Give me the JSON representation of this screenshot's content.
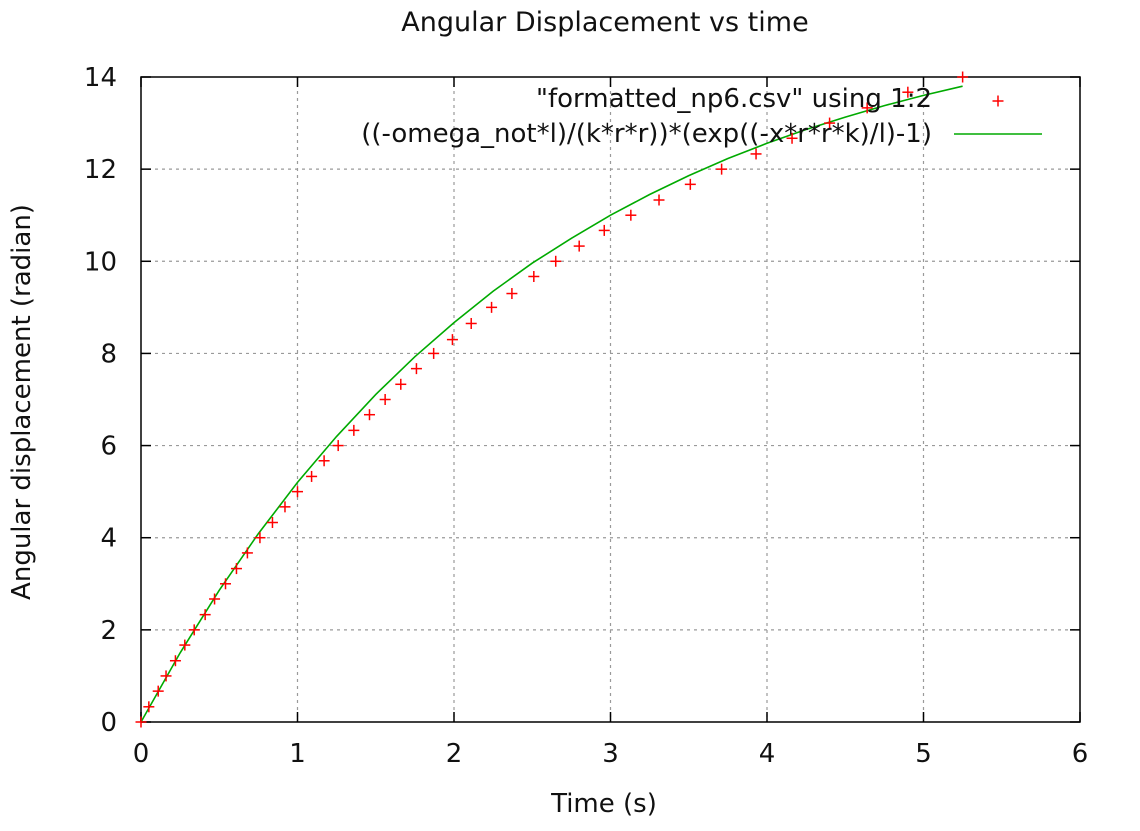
{
  "chart_data": {
    "type": "scatter",
    "title": "Angular Displacement vs time",
    "xlabel": "Time (s)",
    "ylabel": "Angular displacement (radian)",
    "xlim": [
      0,
      6
    ],
    "ylim": [
      0,
      14
    ],
    "xticks": [
      0,
      1,
      2,
      3,
      4,
      5,
      6
    ],
    "yticks": [
      0,
      2,
      4,
      6,
      8,
      10,
      12,
      14
    ],
    "xtick_labels": [
      "0",
      "1",
      "2",
      "3",
      "4",
      "5",
      "6"
    ],
    "ytick_labels": [
      "0",
      "2",
      "4",
      "6",
      "8",
      "10",
      "12",
      "14"
    ],
    "grid": true,
    "legend_position": "top-right",
    "series": [
      {
        "name": "\"formatted_np6.csv\" using 1:2",
        "kind": "points",
        "marker": "+",
        "color": "#ff0000",
        "x": [
          0.0,
          0.05,
          0.11,
          0.16,
          0.22,
          0.28,
          0.34,
          0.41,
          0.47,
          0.54,
          0.61,
          0.68,
          0.76,
          0.84,
          0.92,
          1.0,
          1.09,
          1.17,
          1.26,
          1.36,
          1.46,
          1.56,
          1.66,
          1.76,
          1.87,
          1.99,
          2.11,
          2.24,
          2.37,
          2.51,
          2.65,
          2.8,
          2.96,
          3.13,
          3.31,
          3.51,
          3.71,
          3.93,
          4.16,
          4.4,
          4.64,
          4.9,
          5.25
        ],
        "y": [
          0.0,
          0.33,
          0.67,
          1.0,
          1.33,
          1.67,
          2.0,
          2.33,
          2.67,
          3.0,
          3.33,
          3.67,
          4.0,
          4.33,
          4.67,
          5.0,
          5.33,
          5.67,
          6.0,
          6.33,
          6.67,
          7.0,
          7.33,
          7.67,
          8.0,
          8.3,
          8.65,
          9.0,
          9.3,
          9.67,
          10.0,
          10.33,
          10.67,
          11.0,
          11.33,
          11.67,
          12.0,
          12.33,
          12.67,
          13.0,
          13.33,
          13.67,
          14.0
        ]
      },
      {
        "name": "((-omega_not*l)/(k*r*r))*(exp((-x*r*r*k)/l)-1)",
        "kind": "line",
        "color": "#00aa00",
        "x": [
          0.0,
          0.25,
          0.5,
          0.75,
          1.0,
          1.25,
          1.5,
          1.75,
          2.0,
          2.25,
          2.5,
          2.75,
          3.0,
          3.25,
          3.5,
          3.75,
          4.0,
          4.25,
          4.5,
          4.75,
          5.0,
          5.25
        ],
        "y": [
          0.0,
          1.5,
          2.86,
          4.09,
          5.2,
          6.2,
          7.11,
          7.93,
          8.67,
          9.35,
          9.96,
          10.5,
          11.0,
          11.45,
          11.86,
          12.23,
          12.56,
          12.86,
          13.13,
          13.38,
          13.6,
          13.8
        ]
      }
    ]
  }
}
